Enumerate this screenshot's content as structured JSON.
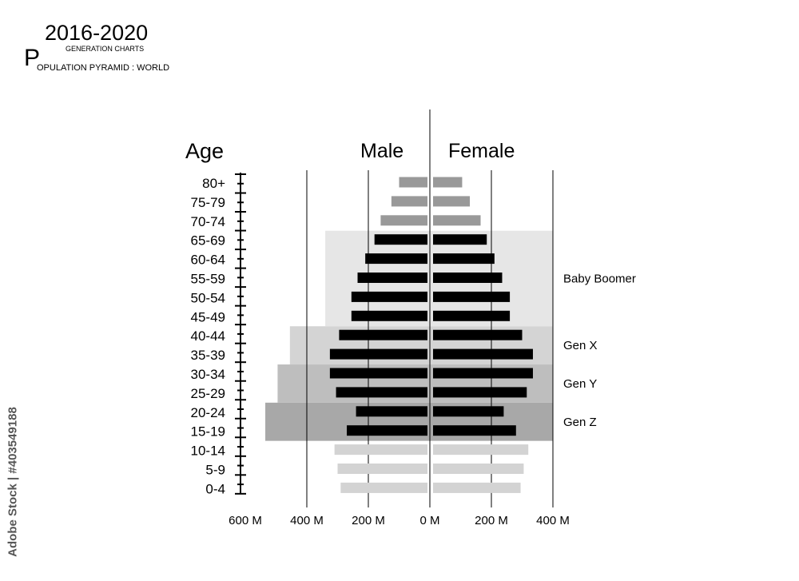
{
  "header": {
    "years": "2016-2020",
    "subtitle": "GENERATION CHARTS",
    "title_initial": "P",
    "title_rest": "OPULATION PYRAMID : WORLD"
  },
  "watermark": "Adobe Stock | #403549188",
  "chart_data": {
    "type": "bar",
    "orientation": "horizontal-pyramid",
    "age_axis_label": "Age",
    "male_label": "Male",
    "female_label": "Female",
    "categories": [
      "80+",
      "75-79",
      "70-74",
      "65-69",
      "60-64",
      "55-59",
      "50-54",
      "45-49",
      "40-44",
      "35-39",
      "30-34",
      "25-29",
      "20-24",
      "15-19",
      "10-14",
      "5-9",
      "0-4"
    ],
    "series": [
      {
        "name": "Male",
        "values": [
          100,
          125,
          160,
          180,
          210,
          235,
          255,
          255,
          295,
          325,
          325,
          305,
          240,
          270,
          310,
          300,
          290
        ]
      },
      {
        "name": "Female",
        "values": [
          105,
          130,
          165,
          185,
          210,
          235,
          260,
          260,
          300,
          335,
          335,
          315,
          240,
          280,
          320,
          305,
          295
        ]
      }
    ],
    "x_tick_labels": [
      "600 M",
      "400 M",
      "200 M",
      "0 M",
      "200 M",
      "400 M"
    ],
    "x_ticks": [
      -600,
      -400,
      -200,
      0,
      200,
      400
    ],
    "xlim": [
      -600,
      400
    ],
    "generations": [
      {
        "name": "Baby Boomer",
        "from": "65-69",
        "to": "45-49",
        "color": "#e6e6e6"
      },
      {
        "name": "Gen X",
        "from": "40-44",
        "to": "35-39",
        "color": "#d4d4d4"
      },
      {
        "name": "Gen Y",
        "from": "30-34",
        "to": "25-29",
        "color": "#bebebe"
      },
      {
        "name": "Gen Z",
        "from": "20-24",
        "to": "15-19",
        "color": "#a8a8a8"
      }
    ],
    "colors": {
      "old_bars": "#999999",
      "generation_bars": "#000000",
      "young_bars": "#d3d3d3"
    }
  }
}
